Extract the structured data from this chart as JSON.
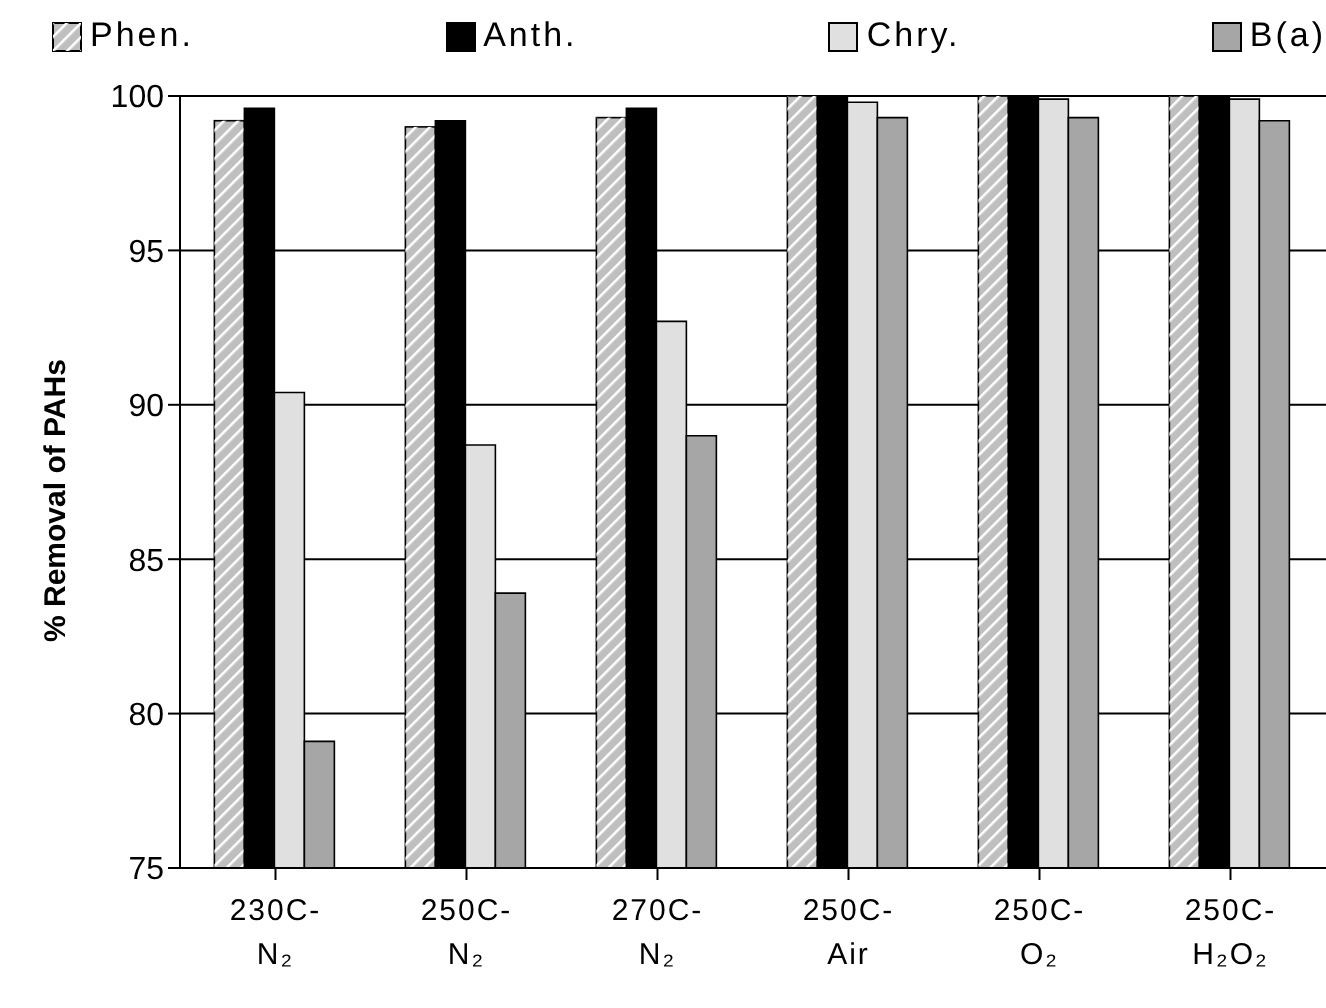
{
  "chart_data": {
    "type": "bar",
    "ylabel": "% Removal of PAHs",
    "categories": [
      "230C-N₂",
      "250C-N₂",
      "270C-N₂",
      "250C-Air",
      "250C-O₂",
      "250C-H₂O₂"
    ],
    "series": [
      {
        "name": "Phen.",
        "color": "#bfbfbf",
        "values": [
          99.2,
          99.0,
          99.3,
          100,
          100,
          100
        ]
      },
      {
        "name": "Anth.",
        "color": "#000000",
        "values": [
          99.6,
          99.2,
          99.6,
          100,
          100,
          100
        ]
      },
      {
        "name": "Chry.",
        "color": "#e0e0e0",
        "values": [
          90.4,
          88.7,
          92.7,
          99.8,
          99.9,
          99.9
        ]
      },
      {
        "name": "B(a)",
        "color": "#a6a6a6",
        "values": [
          79.1,
          83.9,
          89.0,
          99.3,
          99.3,
          99.2
        ]
      }
    ],
    "ylim": [
      75,
      100
    ],
    "yticks": [
      75,
      80,
      85,
      90,
      95,
      100
    ],
    "grid": "y",
    "legend": "top"
  }
}
